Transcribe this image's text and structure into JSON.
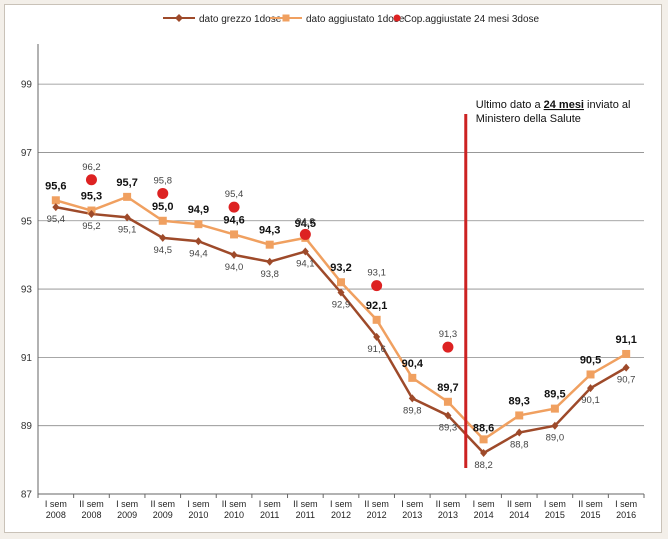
{
  "chart_data": {
    "type": "line",
    "title": "",
    "xlabel": "",
    "ylabel": "",
    "ylim": [
      87,
      100
    ],
    "yticks": [
      "87",
      "89",
      "91",
      "93",
      "95",
      "97",
      "99"
    ],
    "yticks_values": [
      87,
      89,
      91,
      93,
      95,
      97,
      99
    ],
    "categories": [
      [
        "I sem",
        "2008"
      ],
      [
        "II sem",
        "2008"
      ],
      [
        "I sem",
        "2009"
      ],
      [
        "II sem",
        "2009"
      ],
      [
        "I sem",
        "2010"
      ],
      [
        "II sem",
        "2010"
      ],
      [
        "I sem",
        "2011"
      ],
      [
        "II sem",
        "2011"
      ],
      [
        "I sem",
        "2012"
      ],
      [
        "II sem",
        "2012"
      ],
      [
        "I sem",
        "2013"
      ],
      [
        "II sem",
        "2013"
      ],
      [
        "I sem",
        "2014"
      ],
      [
        "II sem",
        "2014"
      ],
      [
        "I sem",
        "2015"
      ],
      [
        "II sem",
        "2015"
      ],
      [
        "I sem",
        "2016"
      ]
    ],
    "legend_position": "top",
    "series": [
      {
        "name": "dato grezzo 1dose",
        "color": "#9e4a2a",
        "marker": "diamond",
        "values": [
          95.4,
          95.2,
          95.1,
          94.5,
          94.4,
          94.0,
          93.8,
          94.1,
          92.9,
          91.6,
          89.8,
          89.3,
          88.2,
          88.8,
          89.0,
          90.1,
          90.7
        ],
        "labels": [
          "95,4",
          "95,2",
          "95,1",
          "94,5",
          "94,4",
          "94,0",
          "93,8",
          "94,1",
          "92,9",
          "91,6",
          "89,8",
          "89,3",
          "88,2",
          "88,8",
          "89,0",
          "90,1",
          "90,7"
        ]
      },
      {
        "name": "dato aggiustato 1dose",
        "color": "#f0a060",
        "marker": "square",
        "values": [
          95.6,
          95.3,
          95.7,
          95.0,
          94.9,
          94.6,
          94.3,
          94.5,
          93.2,
          92.1,
          90.4,
          89.7,
          88.6,
          89.3,
          89.5,
          90.5,
          91.1
        ],
        "labels": [
          "95,6",
          "95,3",
          "95,7",
          "95,0",
          "94,9",
          "94,6",
          "94,3",
          "94,5",
          "93,2",
          "92,1",
          "90,4",
          "89,7",
          "88,6",
          "89,3",
          "89,5",
          "90,5",
          "91,1"
        ]
      },
      {
        "name": "Cop.aggiustate 24 mesi 3dose",
        "color": "#dd2222",
        "marker": "circle",
        "points": [
          {
            "index": 1,
            "value": 96.2,
            "label": "96,2"
          },
          {
            "index": 3,
            "value": 95.8,
            "label": "95,8"
          },
          {
            "index": 5,
            "value": 95.4,
            "label": "95,4"
          },
          {
            "index": 7,
            "value": 94.6,
            "label": "94,6"
          },
          {
            "index": 9,
            "value": 93.1,
            "label": "93,1"
          },
          {
            "index": 11,
            "value": 91.3,
            "label": "91,3"
          }
        ]
      }
    ],
    "annotation": {
      "line1_prefix": "Ultimo dato a ",
      "line1_emph": "24 mesi",
      "line1_suffix": " inviato al",
      "line2": "Ministero della Salute",
      "after_index": 11,
      "color": "#cc2222"
    }
  }
}
